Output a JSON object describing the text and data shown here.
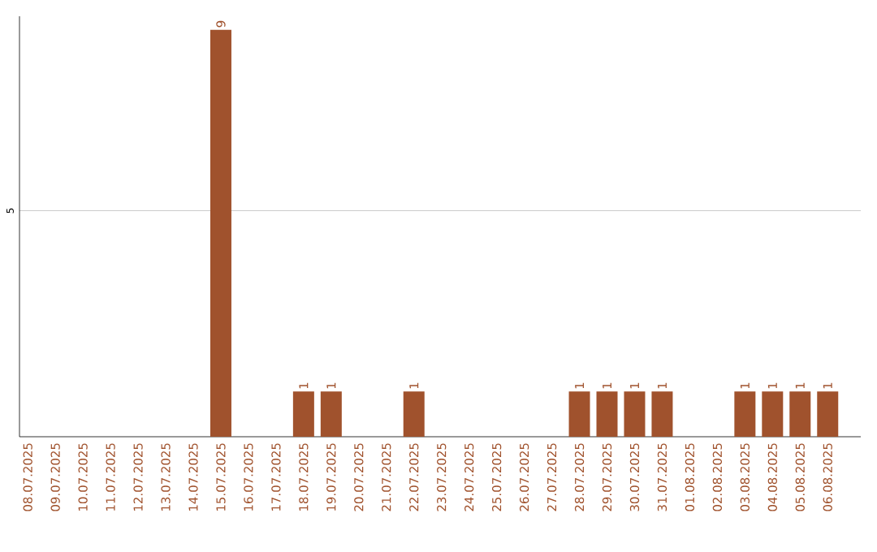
{
  "chart_data": {
    "type": "bar",
    "categories": [
      "08.07.2025",
      "09.07.2025",
      "10.07.2025",
      "11.07.2025",
      "12.07.2025",
      "13.07.2025",
      "14.07.2025",
      "15.07.2025",
      "16.07.2025",
      "17.07.2025",
      "18.07.2025",
      "19.07.2025",
      "20.07.2025",
      "21.07.2025",
      "22.07.2025",
      "23.07.2025",
      "24.07.2025",
      "25.07.2025",
      "26.07.2025",
      "27.07.2025",
      "28.07.2025",
      "29.07.2025",
      "30.07.2025",
      "31.07.2025",
      "01.08.2025",
      "02.08.2025",
      "03.08.2025",
      "04.08.2025",
      "05.08.2025",
      "06.08.2025"
    ],
    "values": [
      0,
      0,
      0,
      0,
      0,
      0,
      0,
      9,
      0,
      0,
      1,
      1,
      0,
      0,
      1,
      0,
      0,
      0,
      0,
      0,
      1,
      1,
      1,
      1,
      0,
      0,
      1,
      1,
      1,
      1
    ],
    "value_labels": [
      null,
      null,
      null,
      null,
      null,
      null,
      null,
      "9",
      null,
      null,
      "1",
      "1",
      null,
      null,
      "1",
      null,
      null,
      null,
      null,
      null,
      "1",
      "1",
      "1",
      "1",
      null,
      null,
      "1",
      "1",
      "1",
      "1"
    ],
    "color": "#a0522d",
    "ylim": [
      0,
      9.3
    ],
    "yticks": [
      5
    ],
    "grid": "y"
  }
}
